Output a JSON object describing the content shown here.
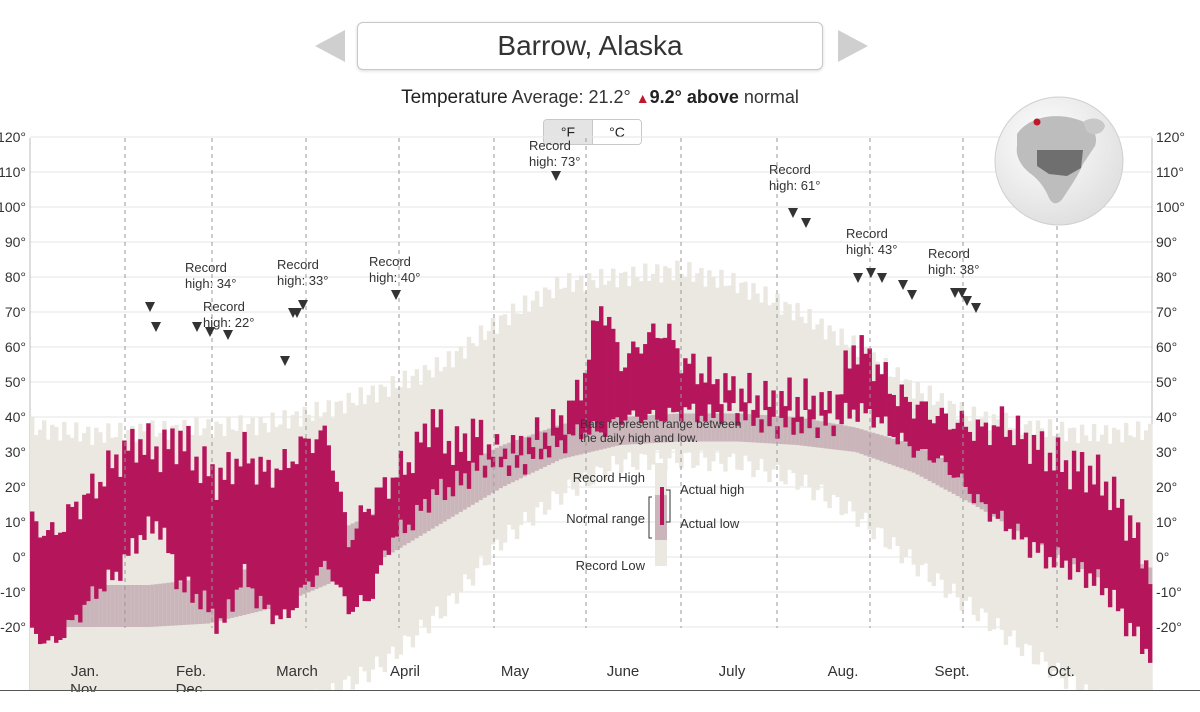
{
  "header": {
    "city": "Barrow, Alaska",
    "summary_label": "Temperature",
    "summary_avg": "Average: 21.2°",
    "summary_delta": "9.2°",
    "summary_above": "above",
    "summary_normal": "normal"
  },
  "unit_toggle": {
    "f": "°F",
    "c": "°C",
    "selected": "°F"
  },
  "colors": {
    "actual": "#b5165b",
    "normal": "#c9b5ba",
    "record": "#eae8e0",
    "text": "#333333"
  },
  "icons": {
    "prev": "chevron-left-icon",
    "next": "chevron-right-icon",
    "globe": "globe-locator-icon"
  },
  "chart_data": {
    "type": "bar",
    "description_note": "Bars represent range between the daily high and low.",
    "ylim": [
      -30,
      120
    ],
    "y_ticks": [
      -20,
      -10,
      0,
      10,
      20,
      30,
      40,
      50,
      60,
      70,
      80,
      90,
      100,
      110,
      120
    ],
    "y_tick_labels": [
      "-20°",
      "-10°",
      "0°",
      "10°",
      "20°",
      "30°",
      "40°",
      "50°",
      "60°",
      "70°",
      "80°",
      "90°",
      "100°",
      "110°",
      "120°"
    ],
    "months": [
      "Jan.",
      "Feb.",
      "March",
      "April",
      "May",
      "June",
      "July",
      "Aug.",
      "Sept.",
      "Oct.",
      "Nov.",
      "Dec."
    ],
    "month_label_rows": [
      [
        "Jan.",
        "Nov."
      ],
      [
        "Feb.",
        "Dec."
      ],
      [
        "March"
      ],
      [
        "April"
      ],
      [
        "May"
      ],
      [
        "June"
      ],
      [
        "July"
      ],
      [
        "Aug."
      ],
      [
        "Sept."
      ],
      [
        "Oct."
      ]
    ],
    "series": {
      "normal_low": [
        -20,
        -20,
        -20,
        -19,
        -15,
        -8,
        0,
        10,
        20,
        28,
        32,
        33,
        33,
        32,
        30,
        24,
        15,
        5,
        -5,
        -12
      ],
      "normal_high": [
        -7,
        -8,
        -8,
        -6,
        -2,
        6,
        14,
        24,
        32,
        38,
        40,
        41,
        41,
        40,
        37,
        32,
        24,
        14,
        4,
        -3
      ],
      "record_low": [
        -45,
        -47,
        -50,
        -48,
        -45,
        -40,
        -30,
        -15,
        5,
        18,
        27,
        28,
        27,
        22,
        12,
        -2,
        -15,
        -28,
        -40,
        -45
      ],
      "record_high": [
        37,
        35,
        36,
        37,
        38,
        42,
        48,
        55,
        68,
        78,
        80,
        82,
        78,
        70,
        60,
        48,
        40,
        37,
        35,
        36
      ],
      "actual": [
        {
          "high": 10,
          "low": -22
        },
        {
          "high": 6,
          "low": -25
        },
        {
          "high": 14,
          "low": -18
        },
        {
          "high": 20,
          "low": -10
        },
        {
          "high": 28,
          "low": -5
        },
        {
          "high": 33,
          "low": 5
        },
        {
          "high": 30,
          "low": 10
        },
        {
          "high": 34,
          "low": -8
        },
        {
          "high": 26,
          "low": -12
        },
        {
          "high": 22,
          "low": -20
        },
        {
          "high": 30,
          "low": -5
        },
        {
          "high": 24,
          "low": -15
        },
        {
          "high": 26,
          "low": -18
        },
        {
          "high": 33,
          "low": -8
        },
        {
          "high": 35,
          "low": -2
        },
        {
          "high": 5,
          "low": -15
        },
        {
          "high": 15,
          "low": -12
        },
        {
          "high": 22,
          "low": 5
        },
        {
          "high": 28,
          "low": 10
        },
        {
          "high": 40,
          "low": 18
        },
        {
          "high": 30,
          "low": 20
        },
        {
          "high": 36,
          "low": 25
        },
        {
          "high": 28,
          "low": 28
        },
        {
          "high": 30,
          "low": 26
        },
        {
          "high": 34,
          "low": 30
        },
        {
          "high": 38,
          "low": 32
        },
        {
          "high": 48,
          "low": 36
        },
        {
          "high": 73,
          "low": 36
        },
        {
          "high": 55,
          "low": 40
        },
        {
          "high": 62,
          "low": 40
        },
        {
          "high": 65,
          "low": 40
        },
        {
          "high": 55,
          "low": 42
        },
        {
          "high": 52,
          "low": 40
        },
        {
          "high": 48,
          "low": 42
        },
        {
          "high": 46,
          "low": 40
        },
        {
          "high": 44,
          "low": 38
        },
        {
          "high": 45,
          "low": 38
        },
        {
          "high": 44,
          "low": 38
        },
        {
          "high": 42,
          "low": 38
        },
        {
          "high": 61,
          "low": 42
        },
        {
          "high": 55,
          "low": 40
        },
        {
          "high": 46,
          "low": 34
        },
        {
          "high": 43,
          "low": 30
        },
        {
          "high": 40,
          "low": 28
        },
        {
          "high": 38,
          "low": 22
        },
        {
          "high": 36,
          "low": 15
        },
        {
          "high": 38,
          "low": 10
        },
        {
          "high": 34,
          "low": 5
        },
        {
          "high": 30,
          "low": 0
        },
        {
          "high": 26,
          "low": -2
        },
        {
          "high": 25,
          "low": -5
        },
        {
          "high": 20,
          "low": -10
        },
        {
          "high": 10,
          "low": -20
        },
        {
          "high": -4,
          "low": -28
        }
      ]
    },
    "annotations": [
      {
        "line1": "Record",
        "line2": "high: 34°"
      },
      {
        "line1": "Record",
        "line2": "high: 22°"
      },
      {
        "line1": "Record",
        "line2": "high: 33°"
      },
      {
        "line1": "Record",
        "line2": "high: 40°"
      },
      {
        "line1": "Record",
        "line2": "high: 73°"
      },
      {
        "line1": "Record",
        "line2": "high: 61°"
      },
      {
        "line1": "Record",
        "line2": "high: 43°"
      },
      {
        "line1": "Record",
        "line2": "high: 38°"
      }
    ],
    "legend": {
      "note_line1": "Bars represent range between",
      "note_line2": "the daily high and low.",
      "record_high": "Record High",
      "normal_range": "Normal range",
      "record_low": "Record Low",
      "actual_high": "Actual high",
      "actual_low": "Actual low"
    }
  }
}
